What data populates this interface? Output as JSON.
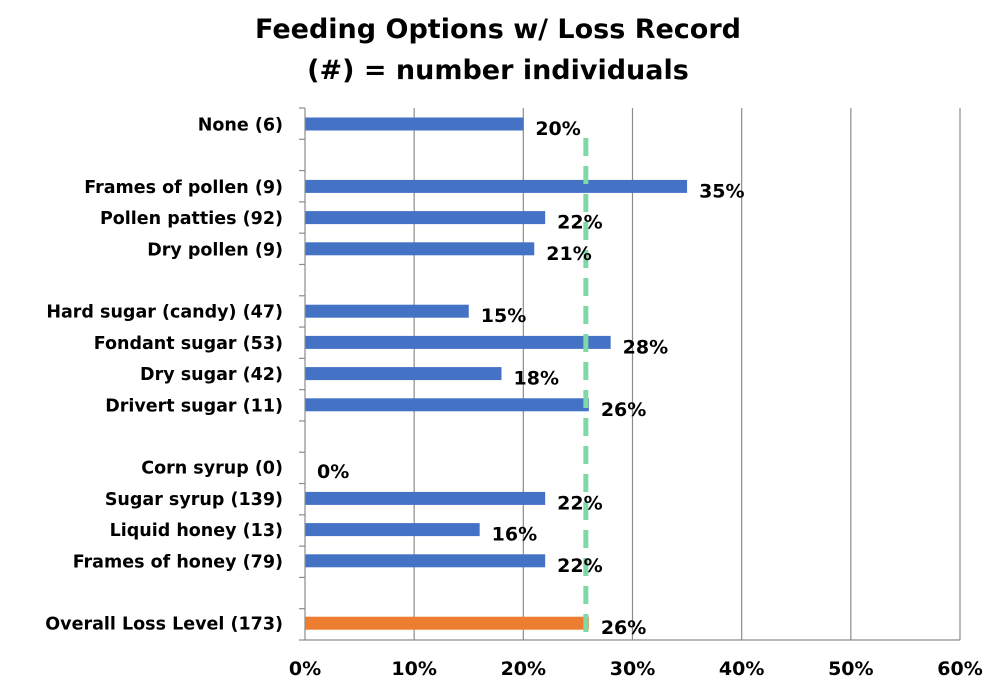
{
  "chart_data": {
    "type": "bar",
    "orientation": "horizontal",
    "title": "Feeding Options w/ Loss Record",
    "subtitle": "(#) = number individuals",
    "categories": [
      "None (6)",
      "",
      "Frames of pollen (9)",
      "Pollen patties (92)",
      "Dry pollen (9)",
      "",
      "Hard sugar (candy) (47)",
      "Fondant sugar (53)",
      "Dry sugar (42)",
      "Drivert sugar (11)",
      "",
      "Corn syrup (0)",
      "Sugar syrup (139)",
      "Liquid honey (13)",
      "Frames of honey (79)",
      "",
      "Overall Loss Level (173)"
    ],
    "values": [
      20,
      null,
      35,
      22,
      21,
      null,
      15,
      28,
      18,
      26,
      null,
      0,
      22,
      16,
      22,
      null,
      26
    ],
    "value_labels": [
      "20%",
      "",
      "35%",
      "22%",
      "21%",
      "",
      "15%",
      "28%",
      "18%",
      "26%",
      "",
      "0%",
      "22%",
      "16%",
      "22%",
      "",
      "26%"
    ],
    "bar_colors": [
      "#4472C4",
      "",
      "#4472C4",
      "#4472C4",
      "#4472C4",
      "",
      "#4472C4",
      "#4472C4",
      "#4472C4",
      "#4472C4",
      "",
      "#4472C4",
      "#4472C4",
      "#4472C4",
      "#4472C4",
      "",
      "#ED7D31"
    ],
    "reference_line": {
      "value": 26,
      "color": "#7FD9A6",
      "style": "dashed"
    },
    "xlim": [
      0,
      60
    ],
    "xticks": [
      0,
      10,
      20,
      30,
      40,
      50,
      60
    ],
    "xtick_labels": [
      "0%",
      "10%",
      "20%",
      "30%",
      "40%",
      "50%",
      "60%"
    ],
    "grid": "vertical",
    "legend": "none",
    "xlabel": "",
    "ylabel": ""
  }
}
